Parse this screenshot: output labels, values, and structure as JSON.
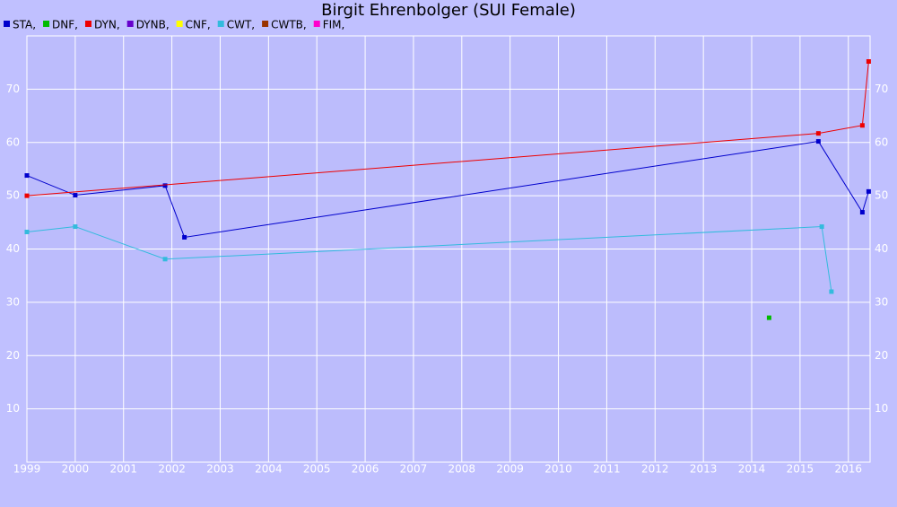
{
  "chart_data": {
    "type": "line",
    "title": "Birgit Ehrenbolger (SUI Female)",
    "series": [
      {
        "name": "STA,",
        "color": "#0000cc",
        "x": [
          1999,
          2000,
          2001.86,
          2002.26,
          2015.38,
          2016.29,
          2016.42
        ],
        "values": [
          53.8,
          50.1,
          51.9,
          42.2,
          60.2,
          46.9,
          50.8
        ]
      },
      {
        "name": "DNF,",
        "color": "#00bb00",
        "x": [
          2014.36
        ],
        "values": [
          27.1
        ]
      },
      {
        "name": "DYN,",
        "color": "#ee0000",
        "x": [
          1999,
          2015.38,
          2016.29,
          2016.42
        ],
        "values": [
          50.0,
          61.7,
          63.2,
          75.2
        ]
      },
      {
        "name": "DYNB,",
        "color": "#6600cc",
        "x": [],
        "values": []
      },
      {
        "name": "CNF,",
        "color": "#ffff00",
        "x": [],
        "values": []
      },
      {
        "name": "CWT,",
        "color": "#33bbdd",
        "x": [
          1999,
          2000,
          2001.86,
          2015.45,
          2015.65
        ],
        "values": [
          43.2,
          44.2,
          38.1,
          44.2,
          32.0
        ]
      },
      {
        "name": "CWTB,",
        "color": "#993300",
        "x": [],
        "values": []
      },
      {
        "name": "FIM,",
        "color": "#ff00cc",
        "x": [],
        "values": []
      }
    ],
    "xlim": [
      1999,
      2016.45
    ],
    "xticks": [
      1999,
      2000,
      2001,
      2002,
      2003,
      2004,
      2005,
      2006,
      2007,
      2008,
      2009,
      2010,
      2011,
      2012,
      2013,
      2014,
      2015,
      2016
    ],
    "ylim": [
      0,
      80
    ],
    "yticks": [
      10,
      20,
      30,
      40,
      50,
      60,
      70
    ],
    "grid": true
  }
}
